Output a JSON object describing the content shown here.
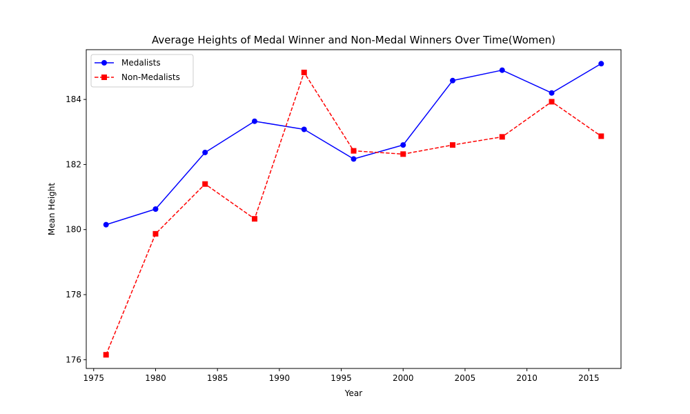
{
  "chart_data": {
    "type": "line",
    "title": "Average Heights of Medal Winner and Non-Medal Winners Over Time(Women)",
    "xlabel": "Year",
    "ylabel": "Mean Height",
    "xlim": [
      1974.4,
      2017.6
    ],
    "ylim": [
      175.73,
      185.53
    ],
    "x_ticks": [
      1975,
      1980,
      1985,
      1990,
      1995,
      2000,
      2005,
      2010,
      2015
    ],
    "y_ticks": [
      176,
      178,
      180,
      182,
      184
    ],
    "grid": false,
    "legend_position": "upper-left",
    "x": [
      1976,
      1980,
      1984,
      1988,
      1992,
      1996,
      2000,
      2004,
      2008,
      2012,
      2016
    ],
    "series": [
      {
        "name": "Medalists",
        "color": "#0000ff",
        "line_style": "solid",
        "marker": "circle",
        "values": [
          180.15,
          180.63,
          182.37,
          183.33,
          183.08,
          182.17,
          182.6,
          184.58,
          184.9,
          184.2,
          185.1
        ]
      },
      {
        "name": "Non-Medalists",
        "color": "#ff0000",
        "line_style": "dashed",
        "marker": "square",
        "values": [
          176.15,
          179.87,
          181.4,
          180.33,
          184.83,
          182.42,
          182.32,
          182.6,
          182.85,
          183.93,
          182.87
        ]
      }
    ]
  }
}
